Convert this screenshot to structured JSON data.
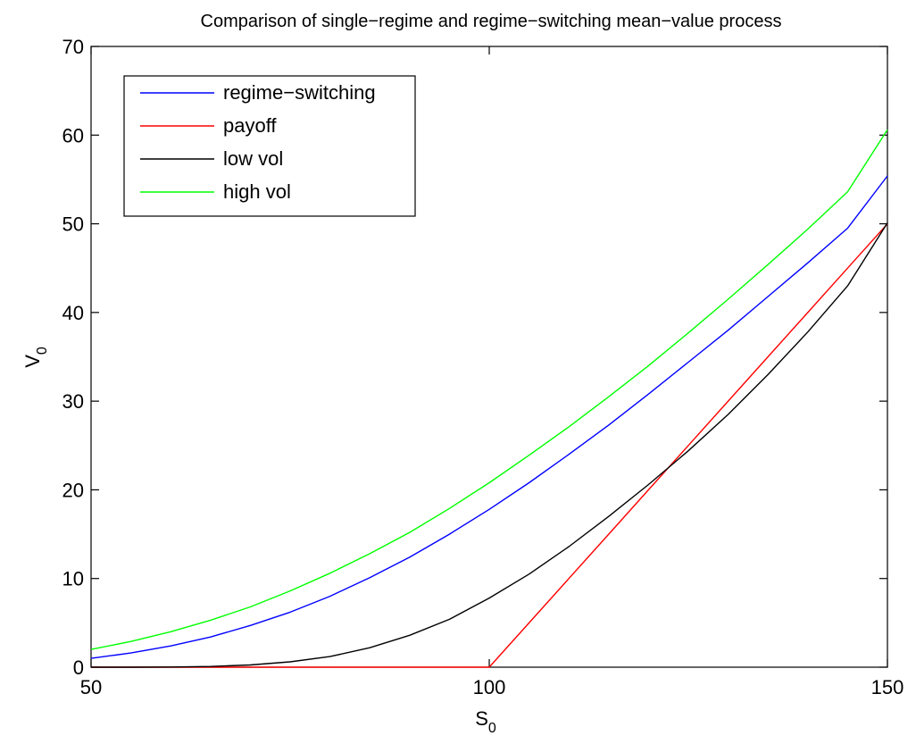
{
  "chart_data": {
    "type": "line",
    "title": "Comparison of single−regime and regime−switching mean−value process",
    "xlabel": "S",
    "xlabel_sub": "0",
    "ylabel": "V",
    "ylabel_sub": "0",
    "xlim": [
      50,
      150
    ],
    "ylim": [
      0,
      70
    ],
    "xticks": [
      50,
      100,
      150
    ],
    "xtick_labels": [
      "50",
      "100",
      "150"
    ],
    "yticks": [
      0,
      10,
      20,
      30,
      40,
      50,
      60,
      70
    ],
    "ytick_labels": [
      "0",
      "10",
      "20",
      "30",
      "40",
      "50",
      "60",
      "70"
    ],
    "grid": false,
    "legend_position": "top-left",
    "x": [
      50,
      55,
      60,
      65,
      70,
      75,
      80,
      85,
      90,
      95,
      100,
      105,
      110,
      115,
      120,
      125,
      130,
      135,
      140,
      145,
      150
    ],
    "series": [
      {
        "name": "regime−switching",
        "color": "#0000ff",
        "values": [
          1.0,
          1.6,
          2.4,
          3.4,
          4.7,
          6.2,
          8.0,
          10.1,
          12.4,
          15.0,
          17.8,
          20.8,
          24.0,
          27.3,
          30.8,
          34.4,
          38.0,
          41.8,
          45.6,
          49.5,
          55.4
        ]
      },
      {
        "name": "payoff",
        "color": "#ff0000",
        "values": [
          0,
          0,
          0,
          0,
          0,
          0,
          0,
          0,
          0,
          0,
          0,
          5,
          10,
          15,
          20,
          25,
          30,
          35,
          40,
          45,
          50
        ]
      },
      {
        "name": "low vol",
        "color": "#000000",
        "values": [
          0,
          0,
          0.02,
          0.08,
          0.25,
          0.6,
          1.2,
          2.2,
          3.6,
          5.4,
          7.8,
          10.5,
          13.6,
          17.0,
          20.6,
          24.4,
          28.5,
          33.0,
          37.8,
          43.0,
          50.1
        ]
      },
      {
        "name": "high vol",
        "color": "#00ff00",
        "values": [
          2.0,
          2.9,
          4.0,
          5.3,
          6.8,
          8.6,
          10.6,
          12.8,
          15.2,
          17.9,
          20.8,
          23.9,
          27.1,
          30.5,
          34.0,
          37.7,
          41.5,
          45.4,
          49.4,
          53.6,
          60.6
        ]
      }
    ]
  }
}
